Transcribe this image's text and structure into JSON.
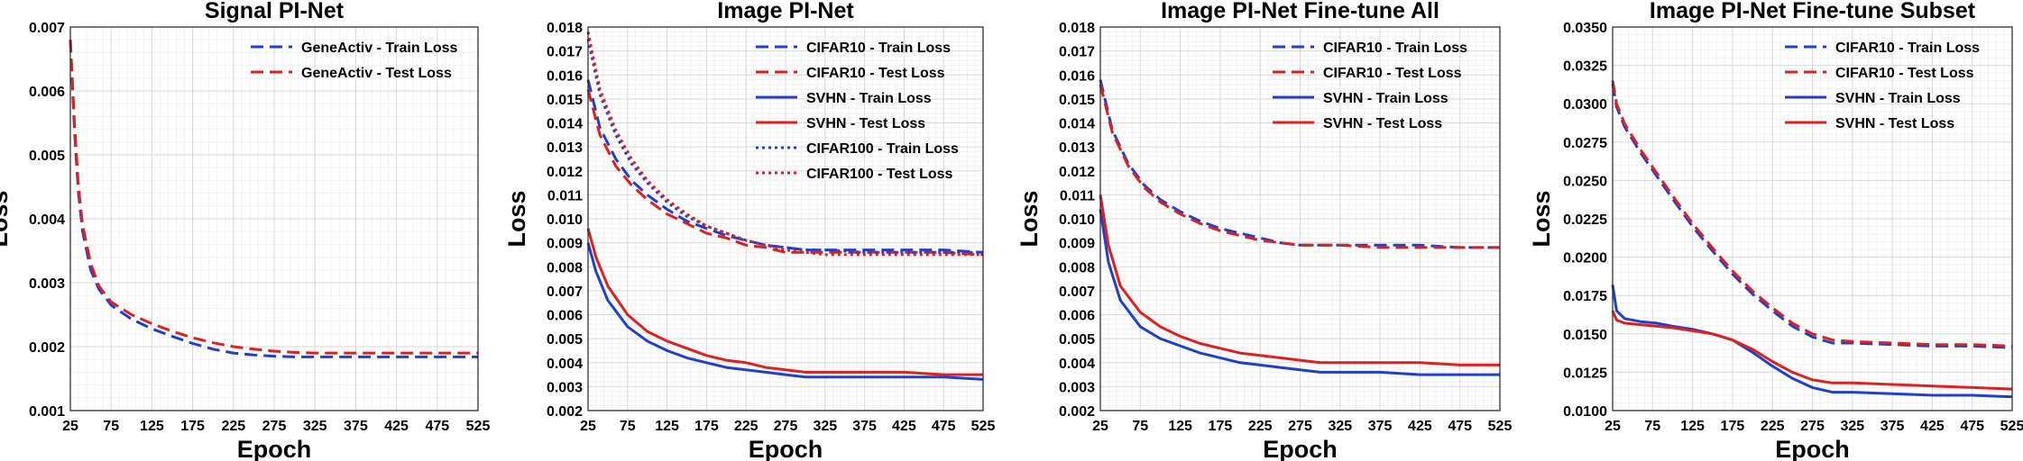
{
  "chart_data": [
    {
      "type": "line",
      "title": "Signal PI-Net",
      "xlabel": "Epoch",
      "ylabel": "Loss",
      "xlim": [
        25,
        525
      ],
      "ylim": [
        0.001,
        0.007
      ],
      "xticks": [
        "25",
        "75",
        "125",
        "175",
        "225",
        "275",
        "325",
        "375",
        "425",
        "475",
        "525"
      ],
      "yticks": [
        "0.001",
        "0.002",
        "0.003",
        "0.004",
        "0.005",
        "0.006",
        "0.007"
      ],
      "grid": true,
      "legend": "top-right",
      "series": [
        {
          "name": "GeneActiv - Train Loss",
          "color": "#1f3fd1",
          "style": "dashed",
          "x": [
            25,
            30,
            35,
            40,
            50,
            60,
            75,
            100,
            125,
            150,
            175,
            200,
            225,
            250,
            275,
            300,
            325,
            375,
            425,
            475,
            525
          ],
          "y": [
            0.0068,
            0.0054,
            0.0044,
            0.0038,
            0.0032,
            0.0029,
            0.00265,
            0.00243,
            0.00228,
            0.00216,
            0.00205,
            0.00196,
            0.0019,
            0.00187,
            0.00185,
            0.00184,
            0.00184,
            0.00184,
            0.00184,
            0.00184,
            0.00184
          ]
        },
        {
          "name": "GeneActiv - Test Loss",
          "color": "#e02020",
          "style": "dashed",
          "x": [
            25,
            30,
            35,
            40,
            50,
            60,
            75,
            100,
            125,
            150,
            175,
            200,
            225,
            250,
            275,
            300,
            325,
            375,
            425,
            475,
            525
          ],
          "y": [
            0.0068,
            0.0055,
            0.0045,
            0.0039,
            0.0033,
            0.00295,
            0.0027,
            0.0025,
            0.00236,
            0.00224,
            0.00214,
            0.00206,
            0.002,
            0.00196,
            0.00193,
            0.00191,
            0.0019,
            0.0019,
            0.0019,
            0.0019,
            0.0019
          ]
        }
      ]
    },
    {
      "type": "line",
      "title": "Image PI-Net",
      "xlabel": "Epoch",
      "ylabel": "Loss",
      "xlim": [
        25,
        525
      ],
      "ylim": [
        0.002,
        0.018
      ],
      "xticks": [
        "25",
        "75",
        "125",
        "175",
        "225",
        "275",
        "325",
        "375",
        "425",
        "475",
        "525"
      ],
      "yticks": [
        "0.002",
        "0.003",
        "0.004",
        "0.005",
        "0.006",
        "0.007",
        "0.008",
        "0.009",
        "0.010",
        "0.011",
        "0.012",
        "0.013",
        "0.014",
        "0.015",
        "0.016",
        "0.017",
        "0.018"
      ],
      "grid": true,
      "legend": "top-right",
      "series": [
        {
          "name": "CIFAR10 - Train Loss",
          "color": "#1f3fd1",
          "style": "dashed",
          "x": [
            25,
            40,
            60,
            80,
            100,
            125,
            150,
            175,
            200,
            225,
            250,
            275,
            300,
            325,
            375,
            425,
            475,
            525
          ],
          "y": [
            0.0158,
            0.0138,
            0.0125,
            0.0116,
            0.011,
            0.0104,
            0.0099,
            0.0096,
            0.0093,
            0.0091,
            0.0089,
            0.0088,
            0.0087,
            0.0087,
            0.0087,
            0.0087,
            0.0087,
            0.0086
          ]
        },
        {
          "name": "CIFAR10 - Test Loss",
          "color": "#e02020",
          "style": "dashed",
          "x": [
            25,
            40,
            60,
            80,
            100,
            125,
            150,
            175,
            200,
            225,
            250,
            275,
            300,
            325,
            375,
            425,
            475,
            525
          ],
          "y": [
            0.0154,
            0.0135,
            0.0122,
            0.0114,
            0.0108,
            0.0102,
            0.0098,
            0.0094,
            0.0092,
            0.0089,
            0.0088,
            0.0086,
            0.0086,
            0.0086,
            0.0086,
            0.0086,
            0.0086,
            0.0085
          ]
        },
        {
          "name": "SVHN - Train Loss",
          "color": "#1f3fd1",
          "style": "solid",
          "x": [
            25,
            35,
            50,
            75,
            100,
            125,
            150,
            175,
            200,
            225,
            250,
            275,
            300,
            325,
            375,
            425,
            475,
            525
          ],
          "y": [
            0.009,
            0.0078,
            0.0066,
            0.0055,
            0.0049,
            0.0045,
            0.0042,
            0.004,
            0.0038,
            0.0037,
            0.0036,
            0.0035,
            0.0034,
            0.0034,
            0.0034,
            0.0034,
            0.0034,
            0.0033
          ]
        },
        {
          "name": "SVHN - Test Loss",
          "color": "#e02020",
          "style": "solid",
          "x": [
            25,
            35,
            50,
            75,
            100,
            125,
            150,
            175,
            200,
            225,
            250,
            275,
            300,
            325,
            375,
            425,
            475,
            525
          ],
          "y": [
            0.0096,
            0.0084,
            0.0072,
            0.006,
            0.0053,
            0.0049,
            0.0046,
            0.0043,
            0.0041,
            0.004,
            0.0038,
            0.0037,
            0.0036,
            0.0036,
            0.0036,
            0.0036,
            0.0035,
            0.0035
          ]
        },
        {
          "name": "CIFAR100 - Train Loss",
          "color": "#1f3fd1",
          "style": "dotted",
          "x": [
            25,
            40,
            60,
            80,
            100,
            125,
            150,
            175,
            200,
            225,
            250,
            275,
            300,
            325,
            375,
            425,
            475,
            525
          ],
          "y": [
            0.0175,
            0.0152,
            0.0135,
            0.0123,
            0.0115,
            0.0107,
            0.0101,
            0.0097,
            0.0094,
            0.0091,
            0.0089,
            0.0088,
            0.0087,
            0.0087,
            0.0086,
            0.0086,
            0.0086,
            0.0086
          ]
        },
        {
          "name": "CIFAR100 - Test Loss",
          "color": "#e02020",
          "style": "dotted",
          "x": [
            25,
            40,
            60,
            80,
            100,
            125,
            150,
            175,
            200,
            225,
            250,
            275,
            300,
            325,
            375,
            425,
            475,
            525
          ],
          "y": [
            0.0178,
            0.0154,
            0.0137,
            0.0125,
            0.0116,
            0.0108,
            0.0102,
            0.0097,
            0.0094,
            0.0091,
            0.0089,
            0.0087,
            0.0086,
            0.0085,
            0.0085,
            0.0085,
            0.0085,
            0.0085
          ]
        }
      ]
    },
    {
      "type": "line",
      "title": "Image PI-Net Fine-tune All",
      "xlabel": "Epoch",
      "ylabel": "Loss",
      "xlim": [
        25,
        525
      ],
      "ylim": [
        0.002,
        0.018
      ],
      "xticks": [
        "25",
        "75",
        "125",
        "175",
        "225",
        "275",
        "325",
        "375",
        "425",
        "475",
        "525"
      ],
      "yticks": [
        "0.002",
        "0.003",
        "0.004",
        "0.005",
        "0.006",
        "0.007",
        "0.008",
        "0.009",
        "0.010",
        "0.011",
        "0.012",
        "0.013",
        "0.014",
        "0.015",
        "0.016",
        "0.017",
        "0.018"
      ],
      "grid": true,
      "legend": "top-right",
      "series": [
        {
          "name": "CIFAR10 - Train Loss",
          "color": "#1f3fd1",
          "style": "dashed",
          "x": [
            25,
            40,
            60,
            80,
            100,
            125,
            150,
            175,
            200,
            225,
            250,
            275,
            300,
            325,
            375,
            425,
            475,
            525
          ],
          "y": [
            0.0158,
            0.0137,
            0.0123,
            0.0114,
            0.0108,
            0.0103,
            0.0099,
            0.0096,
            0.0094,
            0.0092,
            0.009,
            0.0089,
            0.0089,
            0.0089,
            0.0089,
            0.0089,
            0.0088,
            0.0088
          ]
        },
        {
          "name": "CIFAR10 - Test Loss",
          "color": "#e02020",
          "style": "dashed",
          "x": [
            25,
            40,
            60,
            80,
            100,
            125,
            150,
            175,
            200,
            225,
            250,
            275,
            300,
            325,
            375,
            425,
            475,
            525
          ],
          "y": [
            0.0156,
            0.0136,
            0.0122,
            0.0113,
            0.0107,
            0.0102,
            0.0098,
            0.0095,
            0.0093,
            0.0091,
            0.009,
            0.0089,
            0.0089,
            0.0089,
            0.0088,
            0.0088,
            0.0088,
            0.0088
          ]
        },
        {
          "name": "SVHN - Train Loss",
          "color": "#1f3fd1",
          "style": "solid",
          "x": [
            25,
            35,
            50,
            75,
            100,
            125,
            150,
            175,
            200,
            225,
            250,
            275,
            300,
            325,
            375,
            425,
            475,
            525
          ],
          "y": [
            0.0104,
            0.0082,
            0.0066,
            0.0055,
            0.005,
            0.0047,
            0.0044,
            0.0042,
            0.004,
            0.0039,
            0.0038,
            0.0037,
            0.0036,
            0.0036,
            0.0036,
            0.0035,
            0.0035,
            0.0035
          ]
        },
        {
          "name": "SVHN - Test Loss",
          "color": "#e02020",
          "style": "solid",
          "x": [
            25,
            35,
            50,
            75,
            100,
            125,
            150,
            175,
            200,
            225,
            250,
            275,
            300,
            325,
            375,
            425,
            475,
            525
          ],
          "y": [
            0.011,
            0.0089,
            0.0072,
            0.0061,
            0.0055,
            0.0051,
            0.0048,
            0.0046,
            0.0044,
            0.0043,
            0.0042,
            0.0041,
            0.004,
            0.004,
            0.004,
            0.004,
            0.0039,
            0.0039
          ]
        }
      ]
    },
    {
      "type": "line",
      "title": "Image PI-Net Fine-tune Subset",
      "xlabel": "Epoch",
      "ylabel": "Loss",
      "xlim": [
        25,
        525
      ],
      "ylim": [
        0.01,
        0.035
      ],
      "xticks": [
        "25",
        "75",
        "125",
        "175",
        "225",
        "275",
        "325",
        "375",
        "425",
        "475",
        "525"
      ],
      "yticks": [
        "0.0100",
        "0.0125",
        "0.0150",
        "0.0175",
        "0.0200",
        "0.0225",
        "0.0250",
        "0.0275",
        "0.0300",
        "0.0325",
        "0.0350"
      ],
      "grid": true,
      "legend": "top-right",
      "series": [
        {
          "name": "CIFAR10 - Train Loss",
          "color": "#1f3fd1",
          "style": "dashed",
          "x": [
            25,
            30,
            40,
            60,
            80,
            100,
            125,
            150,
            175,
            200,
            225,
            250,
            275,
            300,
            325,
            375,
            425,
            475,
            525
          ],
          "y": [
            0.0313,
            0.0298,
            0.0285,
            0.0268,
            0.0253,
            0.0238,
            0.022,
            0.0204,
            0.0189,
            0.0176,
            0.0165,
            0.0155,
            0.0148,
            0.0144,
            0.0144,
            0.0143,
            0.0142,
            0.0142,
            0.0141
          ]
        },
        {
          "name": "CIFAR10 - Test Loss",
          "color": "#e02020",
          "style": "dashed",
          "x": [
            25,
            30,
            40,
            60,
            80,
            100,
            125,
            150,
            175,
            200,
            225,
            250,
            275,
            300,
            325,
            375,
            425,
            475,
            525
          ],
          "y": [
            0.0315,
            0.03,
            0.0287,
            0.027,
            0.0255,
            0.024,
            0.0222,
            0.0206,
            0.0191,
            0.0178,
            0.0167,
            0.0157,
            0.015,
            0.0146,
            0.0145,
            0.0144,
            0.0143,
            0.0143,
            0.0142
          ]
        },
        {
          "name": "SVHN - Train Loss",
          "color": "#1f3fd1",
          "style": "solid",
          "x": [
            25,
            30,
            40,
            60,
            80,
            100,
            125,
            150,
            175,
            200,
            225,
            250,
            275,
            300,
            325,
            375,
            425,
            475,
            525
          ],
          "y": [
            0.0182,
            0.0165,
            0.016,
            0.0158,
            0.0157,
            0.0155,
            0.0153,
            0.015,
            0.0146,
            0.0138,
            0.0129,
            0.0121,
            0.0115,
            0.0112,
            0.0112,
            0.0111,
            0.011,
            0.011,
            0.0109
          ]
        },
        {
          "name": "SVHN - Test Loss",
          "color": "#e02020",
          "style": "solid",
          "x": [
            25,
            30,
            40,
            60,
            80,
            100,
            125,
            150,
            175,
            200,
            225,
            250,
            275,
            300,
            325,
            375,
            425,
            475,
            525
          ],
          "y": [
            0.0165,
            0.0159,
            0.0157,
            0.0156,
            0.0155,
            0.0154,
            0.0152,
            0.015,
            0.0146,
            0.014,
            0.0132,
            0.0125,
            0.012,
            0.0118,
            0.0118,
            0.0117,
            0.0116,
            0.0115,
            0.0114
          ]
        }
      ]
    }
  ]
}
